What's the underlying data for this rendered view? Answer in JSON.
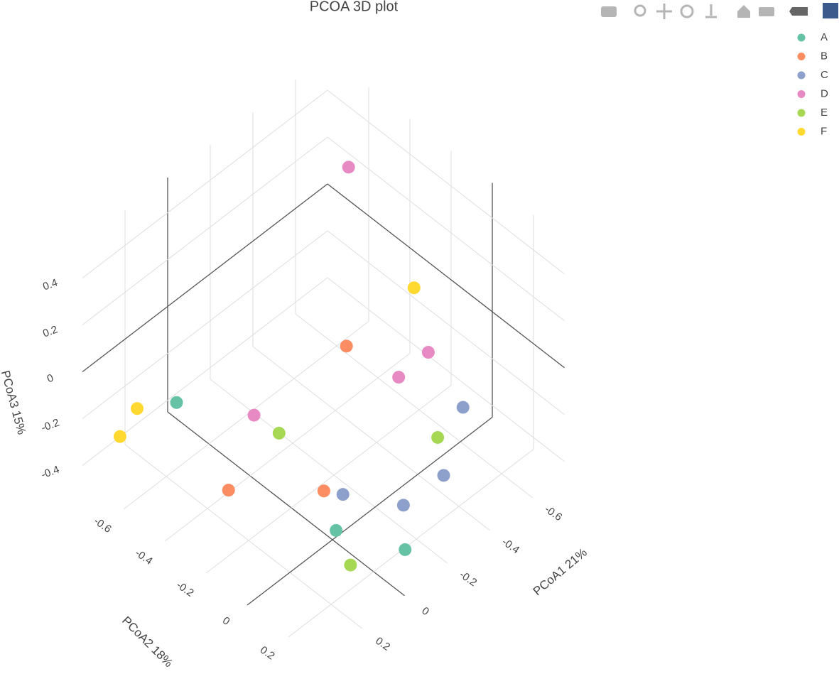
{
  "chart_data": {
    "type": "scatter3d",
    "title": "PCOA 3D plot",
    "xlabel": "PCoA1 21%",
    "ylabel": "PCoA2 18%",
    "zlabel": "PCoA3 15%",
    "xlim": [
      -0.75,
      0.4
    ],
    "ylim": [
      -0.8,
      0.35
    ],
    "zlim": [
      -0.45,
      0.55
    ],
    "xticks": [
      -0.6,
      -0.4,
      -0.2,
      0,
      0.2
    ],
    "yticks": [
      -0.6,
      -0.4,
      -0.2,
      0,
      0.2
    ],
    "zticks": [
      -0.4,
      -0.2,
      0,
      0.2,
      0.4
    ],
    "grid": true,
    "legend": "top-right",
    "series": [
      {
        "name": "A",
        "color": "#66c2a5",
        "x": [
          0.2,
          0.07,
          -0.07
        ],
        "y": [
          -0.55,
          0.09,
          0.28
        ],
        "z": [
          -0.1,
          -0.3,
          -0.35
        ]
      },
      {
        "name": "B",
        "color": "#fc8d62",
        "x": [
          -0.23,
          0.13,
          0.05
        ],
        "y": [
          -0.17,
          -0.37,
          0.01
        ],
        "z": [
          0.1,
          -0.4,
          -0.2
        ]
      },
      {
        "name": "C",
        "color": "#8da0cb",
        "x": [
          -0.39,
          -0.28,
          -0.13,
          -0.02
        ],
        "y": [
          0.23,
          0.25,
          0.21,
          0.03
        ],
        "z": [
          0,
          -0.2,
          -0.25,
          -0.25
        ]
      },
      {
        "name": "D",
        "color": "#e78ac3",
        "x": [
          -0.53,
          -0.44,
          -0.33,
          0.02
        ],
        "y": [
          -0.47,
          0.01,
          -0.02,
          -0.36
        ],
        "z": [
          0.45,
          0.05,
          0,
          -0.15
        ]
      },
      {
        "name": "E",
        "color": "#a6d854",
        "x": [
          -0.02,
          -0.31,
          0.07
        ],
        "y": [
          -0.28,
          0.19,
          0.16
        ],
        "z": [
          -0.2,
          -0.1,
          -0.4
        ]
      },
      {
        "name": "F",
        "color": "#ffd92f",
        "x": [
          -0.46,
          0.24,
          0.33
        ],
        "y": [
          -0.08,
          -0.7,
          -0.69
        ],
        "z": [
          0.25,
          -0.2,
          -0.25
        ]
      }
    ]
  }
}
